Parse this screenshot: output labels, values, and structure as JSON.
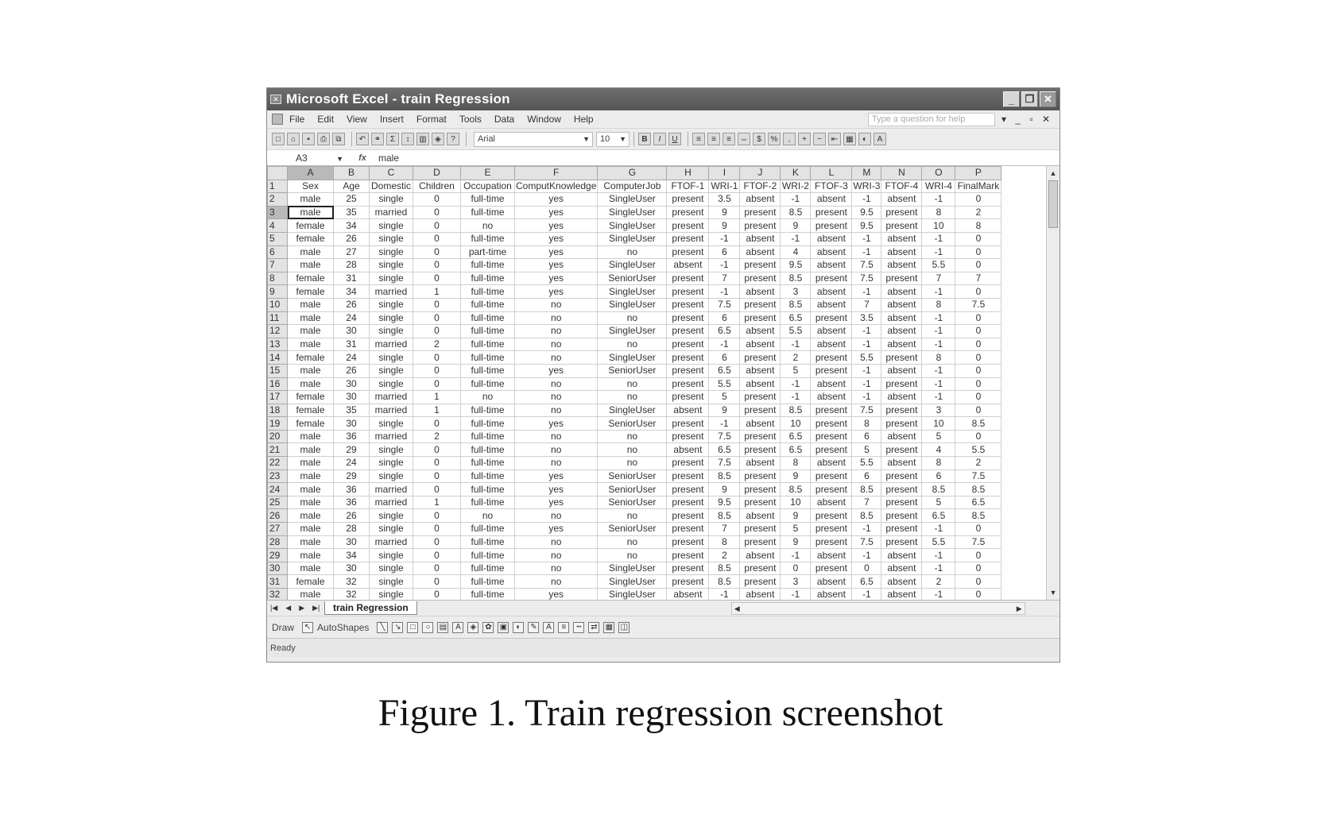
{
  "window": {
    "title": "Microsoft Excel - train Regression"
  },
  "menu": [
    "File",
    "Edit",
    "View",
    "Insert",
    "Format",
    "Tools",
    "Data",
    "Window",
    "Help"
  ],
  "help_placeholder": "Type a question for help",
  "toolbar": {
    "font_name": "Arial",
    "font_size": "10"
  },
  "formula_bar": {
    "cell_ref": "A3",
    "value": "male"
  },
  "columns": [
    "A",
    "B",
    "C",
    "D",
    "E",
    "F",
    "G",
    "H",
    "I",
    "J",
    "K",
    "L",
    "M",
    "N",
    "O",
    "P"
  ],
  "header_row": [
    "Sex",
    "Age",
    "Domestic",
    "Children",
    "Occupation",
    "ComputKnowledge",
    "ComputerJob",
    "FTOF-1",
    "WRI-1",
    "FTOF-2",
    "WRI-2",
    "FTOF-3",
    "WRI-3",
    "FTOF-4",
    "WRI-4",
    "FinalMark"
  ],
  "rows": [
    [
      "male",
      "25",
      "single",
      "0",
      "full-time",
      "yes",
      "SingleUser",
      "present",
      "3.5",
      "absent",
      "-1",
      "absent",
      "-1",
      "absent",
      "-1",
      "0"
    ],
    [
      "male",
      "35",
      "married",
      "0",
      "full-time",
      "yes",
      "SingleUser",
      "present",
      "9",
      "present",
      "8.5",
      "present",
      "9.5",
      "present",
      "8",
      "2"
    ],
    [
      "female",
      "34",
      "single",
      "0",
      "no",
      "yes",
      "SingleUser",
      "present",
      "9",
      "present",
      "9",
      "present",
      "9.5",
      "present",
      "10",
      "8"
    ],
    [
      "female",
      "26",
      "single",
      "0",
      "full-time",
      "yes",
      "SingleUser",
      "present",
      "-1",
      "absent",
      "-1",
      "absent",
      "-1",
      "absent",
      "-1",
      "0"
    ],
    [
      "male",
      "27",
      "single",
      "0",
      "part-time",
      "yes",
      "no",
      "present",
      "6",
      "absent",
      "4",
      "absent",
      "-1",
      "absent",
      "-1",
      "0"
    ],
    [
      "male",
      "28",
      "single",
      "0",
      "full-time",
      "yes",
      "SingleUser",
      "absent",
      "-1",
      "present",
      "9.5",
      "absent",
      "7.5",
      "absent",
      "5.5",
      "0"
    ],
    [
      "female",
      "31",
      "single",
      "0",
      "full-time",
      "yes",
      "SeniorUser",
      "present",
      "7",
      "present",
      "8.5",
      "present",
      "7.5",
      "present",
      "7",
      "7"
    ],
    [
      "female",
      "34",
      "married",
      "1",
      "full-time",
      "yes",
      "SingleUser",
      "present",
      "-1",
      "absent",
      "3",
      "absent",
      "-1",
      "absent",
      "-1",
      "0"
    ],
    [
      "male",
      "26",
      "single",
      "0",
      "full-time",
      "no",
      "SingleUser",
      "present",
      "7.5",
      "present",
      "8.5",
      "absent",
      "7",
      "absent",
      "8",
      "7.5"
    ],
    [
      "male",
      "24",
      "single",
      "0",
      "full-time",
      "no",
      "no",
      "present",
      "6",
      "present",
      "6.5",
      "present",
      "3.5",
      "absent",
      "-1",
      "0"
    ],
    [
      "male",
      "30",
      "single",
      "0",
      "full-time",
      "no",
      "SingleUser",
      "present",
      "6.5",
      "absent",
      "5.5",
      "absent",
      "-1",
      "absent",
      "-1",
      "0"
    ],
    [
      "male",
      "31",
      "married",
      "2",
      "full-time",
      "no",
      "no",
      "present",
      "-1",
      "absent",
      "-1",
      "absent",
      "-1",
      "absent",
      "-1",
      "0"
    ],
    [
      "female",
      "24",
      "single",
      "0",
      "full-time",
      "no",
      "SingleUser",
      "present",
      "6",
      "present",
      "2",
      "present",
      "5.5",
      "present",
      "8",
      "0"
    ],
    [
      "male",
      "26",
      "single",
      "0",
      "full-time",
      "yes",
      "SeniorUser",
      "present",
      "6.5",
      "absent",
      "5",
      "present",
      "-1",
      "absent",
      "-1",
      "0"
    ],
    [
      "male",
      "30",
      "single",
      "0",
      "full-time",
      "no",
      "no",
      "present",
      "5.5",
      "absent",
      "-1",
      "absent",
      "-1",
      "present",
      "-1",
      "0"
    ],
    [
      "female",
      "30",
      "married",
      "1",
      "no",
      "no",
      "no",
      "present",
      "5",
      "present",
      "-1",
      "absent",
      "-1",
      "absent",
      "-1",
      "0"
    ],
    [
      "female",
      "35",
      "married",
      "1",
      "full-time",
      "no",
      "SingleUser",
      "absent",
      "9",
      "present",
      "8.5",
      "present",
      "7.5",
      "present",
      "3",
      "0"
    ],
    [
      "female",
      "30",
      "single",
      "0",
      "full-time",
      "yes",
      "SeniorUser",
      "present",
      "-1",
      "absent",
      "10",
      "present",
      "8",
      "present",
      "10",
      "8.5"
    ],
    [
      "male",
      "36",
      "married",
      "2",
      "full-time",
      "no",
      "no",
      "present",
      "7.5",
      "present",
      "6.5",
      "present",
      "6",
      "absent",
      "5",
      "0"
    ],
    [
      "male",
      "29",
      "single",
      "0",
      "full-time",
      "no",
      "no",
      "absent",
      "6.5",
      "present",
      "6.5",
      "present",
      "5",
      "present",
      "4",
      "5.5"
    ],
    [
      "male",
      "24",
      "single",
      "0",
      "full-time",
      "no",
      "no",
      "present",
      "7.5",
      "absent",
      "8",
      "absent",
      "5.5",
      "absent",
      "8",
      "2"
    ],
    [
      "male",
      "29",
      "single",
      "0",
      "full-time",
      "yes",
      "SeniorUser",
      "present",
      "8.5",
      "present",
      "9",
      "present",
      "6",
      "present",
      "6",
      "7.5"
    ],
    [
      "male",
      "36",
      "married",
      "0",
      "full-time",
      "yes",
      "SeniorUser",
      "present",
      "9",
      "present",
      "8.5",
      "present",
      "8.5",
      "present",
      "8.5",
      "8.5"
    ],
    [
      "male",
      "36",
      "married",
      "1",
      "full-time",
      "yes",
      "SeniorUser",
      "present",
      "9.5",
      "present",
      "10",
      "absent",
      "7",
      "present",
      "5",
      "6.5"
    ],
    [
      "male",
      "26",
      "single",
      "0",
      "no",
      "no",
      "no",
      "present",
      "8.5",
      "absent",
      "9",
      "present",
      "8.5",
      "present",
      "6.5",
      "8.5"
    ],
    [
      "male",
      "28",
      "single",
      "0",
      "full-time",
      "yes",
      "SeniorUser",
      "present",
      "7",
      "present",
      "5",
      "present",
      "-1",
      "present",
      "-1",
      "0"
    ],
    [
      "male",
      "30",
      "married",
      "0",
      "full-time",
      "no",
      "no",
      "present",
      "8",
      "present",
      "9",
      "present",
      "7.5",
      "present",
      "5.5",
      "7.5"
    ],
    [
      "male",
      "34",
      "single",
      "0",
      "full-time",
      "no",
      "no",
      "present",
      "2",
      "absent",
      "-1",
      "absent",
      "-1",
      "absent",
      "-1",
      "0"
    ],
    [
      "male",
      "30",
      "single",
      "0",
      "full-time",
      "no",
      "SingleUser",
      "present",
      "8.5",
      "present",
      "0",
      "present",
      "0",
      "absent",
      "-1",
      "0"
    ],
    [
      "female",
      "32",
      "single",
      "0",
      "full-time",
      "no",
      "SingleUser",
      "present",
      "8.5",
      "present",
      "3",
      "absent",
      "6.5",
      "absent",
      "2",
      "0"
    ],
    [
      "male",
      "32",
      "single",
      "0",
      "full-time",
      "yes",
      "SingleUser",
      "absent",
      "-1",
      "absent",
      "-1",
      "absent",
      "-1",
      "absent",
      "-1",
      "0"
    ]
  ],
  "sheet_tab": "train Regression",
  "drawing_toolbar": {
    "draw_label": "Draw",
    "autoshapes_label": "AutoShapes"
  },
  "status": "Ready",
  "caption": "Figure 1. Train regression screenshot"
}
